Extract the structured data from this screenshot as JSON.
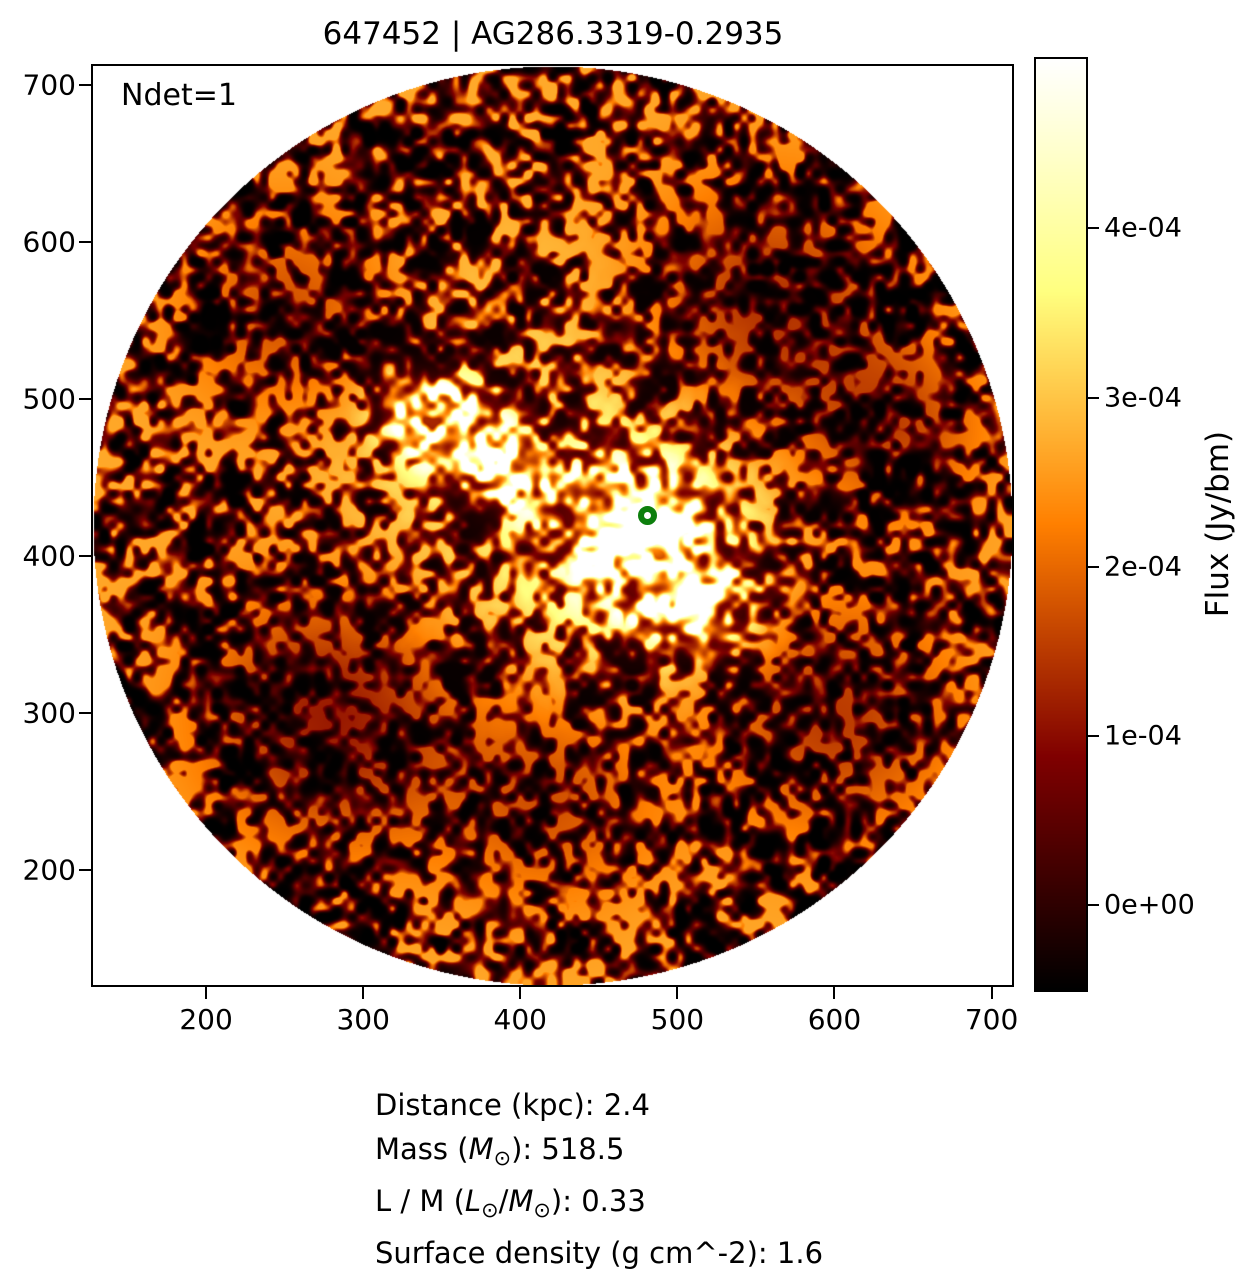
{
  "chart_data": {
    "type": "heatmap",
    "title": "647452 | AG286.3319-0.2935",
    "annotation": "Ndet=1",
    "axes": {
      "x_ticks": [
        200,
        300,
        400,
        500,
        600,
        700
      ],
      "y_ticks": [
        200,
        300,
        400,
        500,
        600,
        700
      ],
      "x_range": [
        128,
        713
      ],
      "y_range": [
        127,
        712
      ],
      "grid": false
    },
    "colorbar": {
      "label": "Flux (Jy/bm)",
      "colormap": "afmhot",
      "vmin": -5e-05,
      "vmax": 0.0005,
      "ticks": [
        {
          "value": 0.0,
          "label": "0e+00"
        },
        {
          "value": 0.0001,
          "label": "1e-04"
        },
        {
          "value": 0.0002,
          "label": "2e-04"
        },
        {
          "value": 0.0003,
          "label": "3e-04"
        },
        {
          "value": 0.0004,
          "label": "4e-04"
        }
      ]
    },
    "mask": {
      "shape": "circle",
      "cx": 420.5,
      "cy": 419.5,
      "r": 292.5
    },
    "marker": {
      "x": 481,
      "y": 426,
      "shape": "open-circle",
      "color": "#0d7f0d"
    },
    "bright_regions": [
      {
        "x": 483,
        "y": 420,
        "sigma": 15,
        "amp": 1.1
      },
      {
        "x": 479,
        "y": 407,
        "sigma": 38,
        "amp": 0.42
      },
      {
        "x": 524,
        "y": 372,
        "sigma": 20,
        "amp": 0.3
      },
      {
        "x": 497,
        "y": 368,
        "sigma": 16,
        "amp": 0.22
      },
      {
        "x": 355,
        "y": 480,
        "sigma": 20,
        "amp": 0.5
      },
      {
        "x": 383,
        "y": 465,
        "sigma": 14,
        "amp": 0.42
      },
      {
        "x": 332,
        "y": 494,
        "sigma": 15,
        "amp": 0.4
      },
      {
        "x": 395,
        "y": 445,
        "sigma": 13,
        "amp": 0.28
      },
      {
        "x": 440,
        "y": 430,
        "sigma": 24,
        "amp": 0.18
      },
      {
        "x": 420,
        "y": 440,
        "sigma": 90,
        "amp": 0.1
      }
    ],
    "dim_regions": [
      {
        "x": 282,
        "y": 300,
        "sigma": 58,
        "amp": 0.5
      },
      {
        "x": 556,
        "y": 556,
        "sigma": 58,
        "amp": 0.42
      },
      {
        "x": 598,
        "y": 300,
        "sigma": 55,
        "amp": 0.38
      },
      {
        "x": 252,
        "y": 556,
        "sigma": 48,
        "amp": 0.3
      },
      {
        "x": 420,
        "y": 248,
        "sigma": 48,
        "amp": 0.3
      },
      {
        "x": 640,
        "y": 480,
        "sigma": 40,
        "amp": 0.3
      }
    ],
    "footer_lines": [
      [
        {
          "t": "Distance (kpc): 2.4"
        }
      ],
      [
        {
          "t": "Mass ("
        },
        {
          "t": "M",
          "style": "italic"
        },
        {
          "t": "⊙",
          "style": "sub"
        },
        {
          "t": "): 518.5"
        }
      ],
      [
        {
          "t": "L / M ("
        },
        {
          "t": "L",
          "style": "italic"
        },
        {
          "t": "⊙",
          "style": "sub"
        },
        {
          "t": "/"
        },
        {
          "t": "M",
          "style": "italic"
        },
        {
          "t": "⊙",
          "style": "sub"
        },
        {
          "t": "): 0.33"
        }
      ],
      [
        {
          "t": "Surface density (g cm^-2): 1.6"
        }
      ]
    ]
  }
}
